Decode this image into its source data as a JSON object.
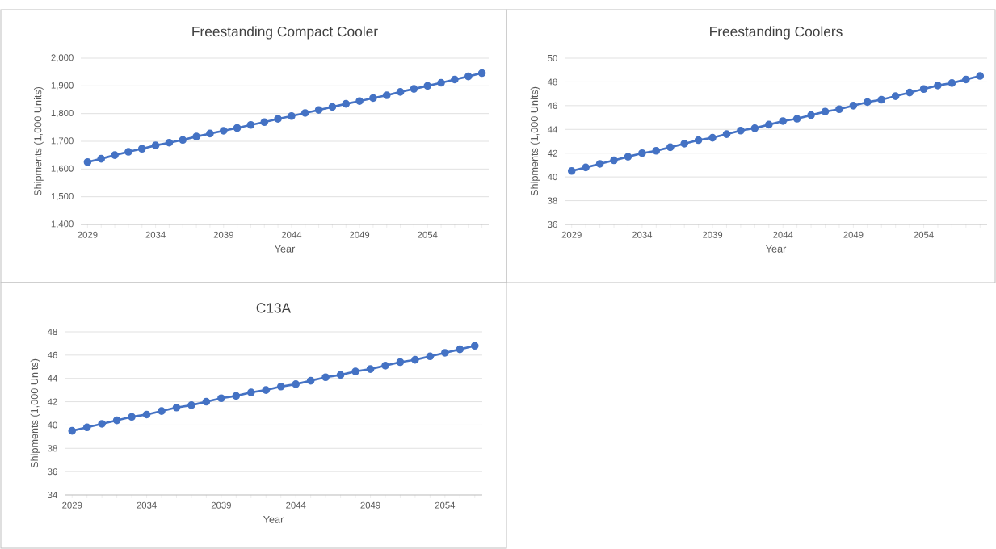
{
  "chart_data": [
    {
      "type": "line",
      "title": "Freestanding Compact Cooler",
      "xlabel": "Year",
      "ylabel": "Shipments (1,000 Units)",
      "categories": [
        "2029",
        null,
        null,
        null,
        null,
        "2034",
        null,
        null,
        null,
        null,
        "2039",
        null,
        null,
        null,
        null,
        "2044",
        null,
        null,
        null,
        null,
        "2049",
        null,
        null,
        null,
        null,
        "2054",
        null,
        null,
        null,
        null
      ],
      "values": [
        1625,
        1637,
        1650,
        1662,
        1673,
        1685,
        1695,
        1705,
        1717,
        1728,
        1738,
        1748,
        1759,
        1769,
        1781,
        1791,
        1802,
        1813,
        1824,
        1835,
        1845,
        1856,
        1866,
        1878,
        1889,
        1900,
        1911,
        1923,
        1934,
        1946
      ],
      "color": "#4472c4",
      "marker": "circle",
      "grid": "y",
      "ylim": [
        1400,
        2000
      ],
      "yticks": [
        {
          "value": 1400,
          "label": "1,400"
        },
        {
          "value": 1500,
          "label": "1,500"
        },
        {
          "value": 1600,
          "label": "1,600"
        },
        {
          "value": 1700,
          "label": "1,700"
        },
        {
          "value": 1800,
          "label": "1,800"
        },
        {
          "value": 1900,
          "label": "1,900"
        },
        {
          "value": 2000,
          "label": "2,000"
        }
      ]
    },
    {
      "type": "line",
      "title": "Freestanding Coolers",
      "xlabel": "Year",
      "ylabel": "Shipments (1,000 Units)",
      "categories": [
        "2029",
        null,
        null,
        null,
        null,
        "2034",
        null,
        null,
        null,
        null,
        "2039",
        null,
        null,
        null,
        null,
        "2044",
        null,
        null,
        null,
        null,
        "2049",
        null,
        null,
        null,
        null,
        "2054",
        null,
        null,
        null,
        null
      ],
      "values": [
        40.5,
        40.8,
        41.1,
        41.4,
        41.7,
        42.0,
        42.2,
        42.5,
        42.8,
        43.1,
        43.3,
        43.6,
        43.9,
        44.1,
        44.4,
        44.7,
        44.9,
        45.2,
        45.5,
        45.7,
        46.0,
        46.3,
        46.5,
        46.8,
        47.1,
        47.4,
        47.7,
        47.9,
        48.2,
        48.5
      ],
      "color": "#4472c4",
      "marker": "circle",
      "grid": "y",
      "ylim": [
        36,
        50
      ],
      "yticks": [
        36,
        38,
        40,
        42,
        44,
        46,
        48,
        50
      ]
    },
    {
      "type": "line",
      "title": "C13A",
      "xlabel": "Year",
      "ylabel": "Shipments (1,000 Units)",
      "categories": [
        "2029",
        null,
        null,
        null,
        null,
        "2034",
        null,
        null,
        null,
        null,
        "2039",
        null,
        null,
        null,
        null,
        "2044",
        null,
        null,
        null,
        null,
        "2049",
        null,
        null,
        null,
        null,
        "2054",
        null,
        null
      ],
      "values": [
        39.5,
        39.8,
        40.1,
        40.4,
        40.7,
        40.9,
        41.2,
        41.5,
        41.7,
        42.0,
        42.3,
        42.5,
        42.8,
        43.0,
        43.3,
        43.5,
        43.8,
        44.1,
        44.3,
        44.6,
        44.8,
        45.1,
        45.4,
        45.6,
        45.9,
        46.2,
        46.5,
        46.8
      ],
      "color": "#4472c4",
      "marker": "circle",
      "grid": "y",
      "ylim": [
        34,
        48
      ],
      "yticks": [
        34,
        36,
        38,
        40,
        42,
        44,
        46,
        48
      ]
    }
  ]
}
